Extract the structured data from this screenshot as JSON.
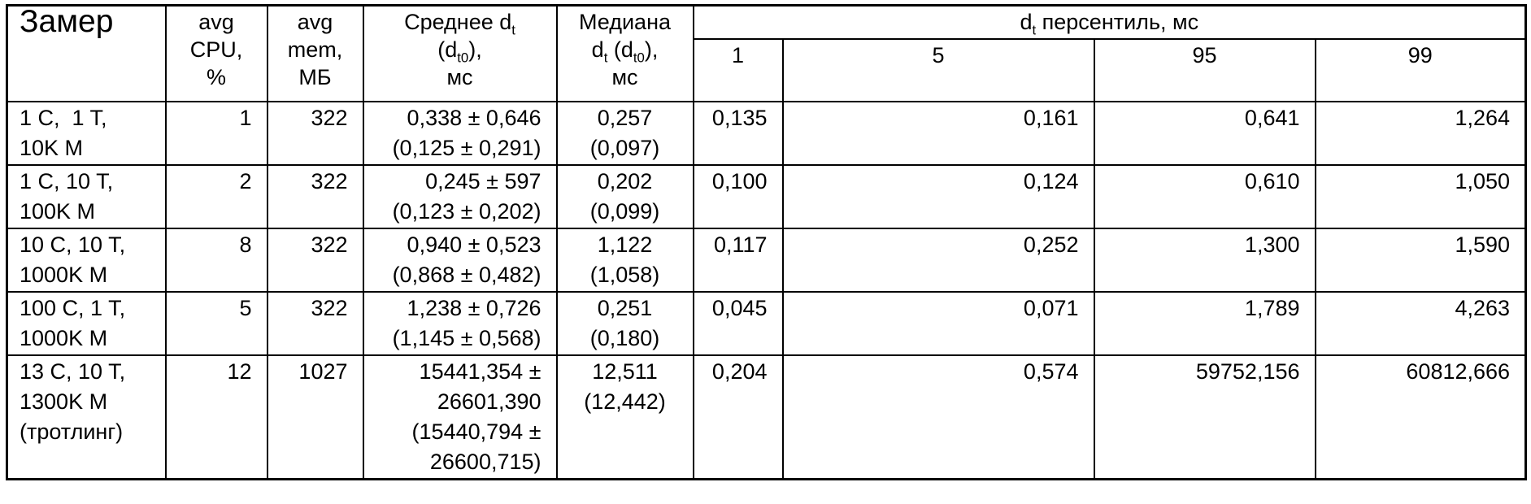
{
  "table": {
    "header": {
      "zamer": "Замер",
      "avg_cpu_lines": [
        "avg",
        "CPU,",
        "%"
      ],
      "avg_mem_lines": [
        "avg",
        "mem,",
        "МБ"
      ],
      "srednee_lines": [
        "Среднее d_{t}",
        "(d_{t0}),",
        "мс"
      ],
      "mediana_lines": [
        "Медиана",
        "d_{t} (d_{t0}),",
        "мс"
      ],
      "percentile_group": "d_{t} персентиль, мс",
      "percentile_cols": [
        "1",
        "5",
        "95",
        "99"
      ]
    },
    "rows": [
      {
        "zamer_lines": [
          "1 C,  1 T,",
          "10K M"
        ],
        "avg_cpu": "1",
        "avg_mem": "322",
        "srednee_lines": [
          "0,338 ± 0,646",
          "(0,125 ± 0,291)"
        ],
        "mediana_lines": [
          "0,257",
          "(0,097)"
        ],
        "p1": "0,135",
        "p5": "0,161",
        "p95": "0,641",
        "p99": "1,264"
      },
      {
        "zamer_lines": [
          "1 C, 10 T,",
          "100K M"
        ],
        "avg_cpu": "2",
        "avg_mem": "322",
        "srednee_lines": [
          "0,245 ± 597",
          "(0,123 ± 0,202)"
        ],
        "mediana_lines": [
          "0,202",
          "(0,099)"
        ],
        "p1": "0,100",
        "p5": "0,124",
        "p95": "0,610",
        "p99": "1,050"
      },
      {
        "zamer_lines": [
          "10 C, 10 T,",
          "1000K M"
        ],
        "avg_cpu": "8",
        "avg_mem": "322",
        "srednee_lines": [
          "0,940 ± 0,523",
          "(0,868 ± 0,482)"
        ],
        "mediana_lines": [
          "1,122",
          "(1,058)"
        ],
        "p1": "0,117",
        "p5": "0,252",
        "p95": "1,300",
        "p99": "1,590"
      },
      {
        "zamer_lines": [
          "100 C, 1 T,",
          "1000K M"
        ],
        "avg_cpu": "5",
        "avg_mem": "322",
        "srednee_lines": [
          "1,238 ± 0,726",
          "(1,145 ± 0,568)"
        ],
        "mediana_lines": [
          "0,251",
          "(0,180)"
        ],
        "p1": "0,045",
        "p5": "0,071",
        "p95": "1,789",
        "p99": "4,263"
      },
      {
        "zamer_lines": [
          "13 C, 10 T,",
          "1300K M",
          "(тротлинг)"
        ],
        "avg_cpu": "12",
        "avg_mem": "1027",
        "srednee_lines": [
          "15441,354 ±",
          "26601,390",
          "(15440,794 ±",
          "26600,715)"
        ],
        "mediana_lines": [
          "12,511",
          "(12,442)"
        ],
        "p1": "0,204",
        "p5": "0,574",
        "p95": "59752,156",
        "p99": "60812,666"
      }
    ]
  }
}
